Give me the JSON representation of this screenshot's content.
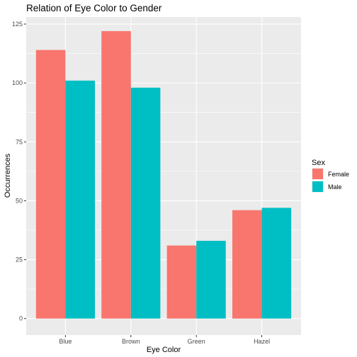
{
  "chart_data": {
    "type": "bar",
    "title": "Relation of Eye Color to Gender",
    "xlabel": "Eye Color",
    "ylabel": "Occurrences",
    "categories": [
      "Blue",
      "Brown",
      "Green",
      "Hazel"
    ],
    "series": [
      {
        "name": "Female",
        "color": "#F8766D",
        "values": [
          114,
          122,
          31,
          46
        ]
      },
      {
        "name": "Male",
        "color": "#00BFC4",
        "values": [
          101,
          98,
          33,
          47
        ]
      }
    ],
    "ylim": [
      -7,
      128
    ],
    "yticks": [
      0,
      25,
      50,
      75,
      100,
      125
    ],
    "ytick_labels": [
      "0",
      "25",
      "50",
      "75",
      "100",
      "125"
    ],
    "legend": {
      "title": "Sex",
      "position": "right"
    },
    "grid": true,
    "panel_background": "#EBEBEB"
  }
}
